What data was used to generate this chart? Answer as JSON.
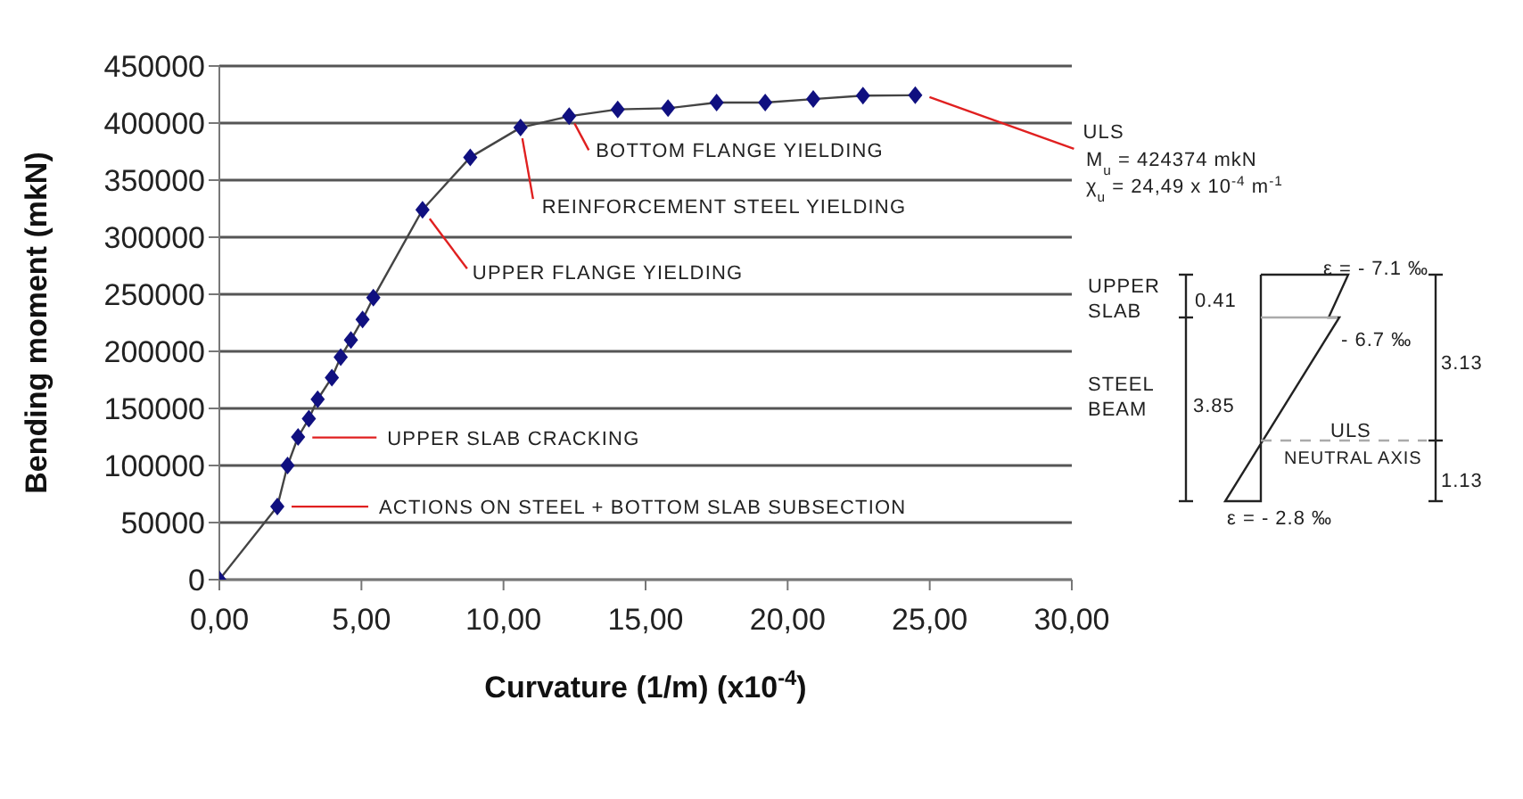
{
  "chart_data": {
    "type": "line",
    "xlabel": "Curvature (1/m) (x10$^{-4}$)",
    "ylabel": "Bending moment (mkN)",
    "x": [
      0,
      2.04,
      2.4,
      2.77,
      3.15,
      3.46,
      3.96,
      4.27,
      4.63,
      5.04,
      5.42,
      7.15,
      8.83,
      10.6,
      12.31,
      14.02,
      15.79,
      17.5,
      19.21,
      20.9,
      22.65,
      24.49
    ],
    "series": [
      {
        "color": "#101080",
        "values": [
          0,
          64000,
          100000,
          125000,
          141000,
          158000,
          177000,
          195000,
          210000,
          228000,
          247000,
          324000,
          370000,
          396000,
          406000,
          412000,
          413000,
          418000,
          418000,
          421000,
          424000,
          424374
        ]
      }
    ],
    "xlim": [
      0,
      30
    ],
    "xticks": [
      {
        "value": 0,
        "label": "0,00"
      },
      {
        "value": 5,
        "label": "5,00"
      },
      {
        "value": 10,
        "label": "10,00"
      },
      {
        "value": 15,
        "label": "15,00"
      },
      {
        "value": 20,
        "label": "20,00"
      },
      {
        "value": 25,
        "label": "25,00"
      },
      {
        "value": 30,
        "label": "30,00"
      }
    ],
    "ylim": [
      0,
      450000
    ],
    "yticks": [
      0,
      50000,
      100000,
      150000,
      200000,
      250000,
      300000,
      350000,
      400000,
      450000
    ],
    "grid": "y",
    "marker": "diamond",
    "line_style": "solid",
    "annotations": [
      {
        "text": "ACTIONS ON STEEL + BOTTOM SLAB SUBSECTION",
        "x": 2.04,
        "y": 64000
      },
      {
        "text": "UPPER SLAB CRACKING",
        "x": 2.77,
        "y": 124500
      },
      {
        "text": "UPPER FLANGE YIELDING",
        "x": 7.15,
        "y": 324000
      },
      {
        "text": "REINFORCEMENT STEEL YIELDING",
        "x": 10.6,
        "y": 396000
      },
      {
        "text": "BOTTOM FLANGE YIELDING",
        "x": 12.31,
        "y": 406000
      },
      {
        "text": "ULS",
        "x": 24.49,
        "y": 424374
      },
      "M$_{u}$ = 424374 mkN",
      "χ$_{u}$ = 24,49 x 10$^{-4}$ m$^{-1}$",
      "UPPER SLAB",
      "STEEL BEAM",
      "0.41",
      "3.85",
      "ε = - 7.1 ‰",
      "- 6.7 ‰",
      "3.13",
      "ULS",
      "NEUTRAL AXIS",
      "1.13",
      "ε = - 2.8 ‰"
    ]
  }
}
